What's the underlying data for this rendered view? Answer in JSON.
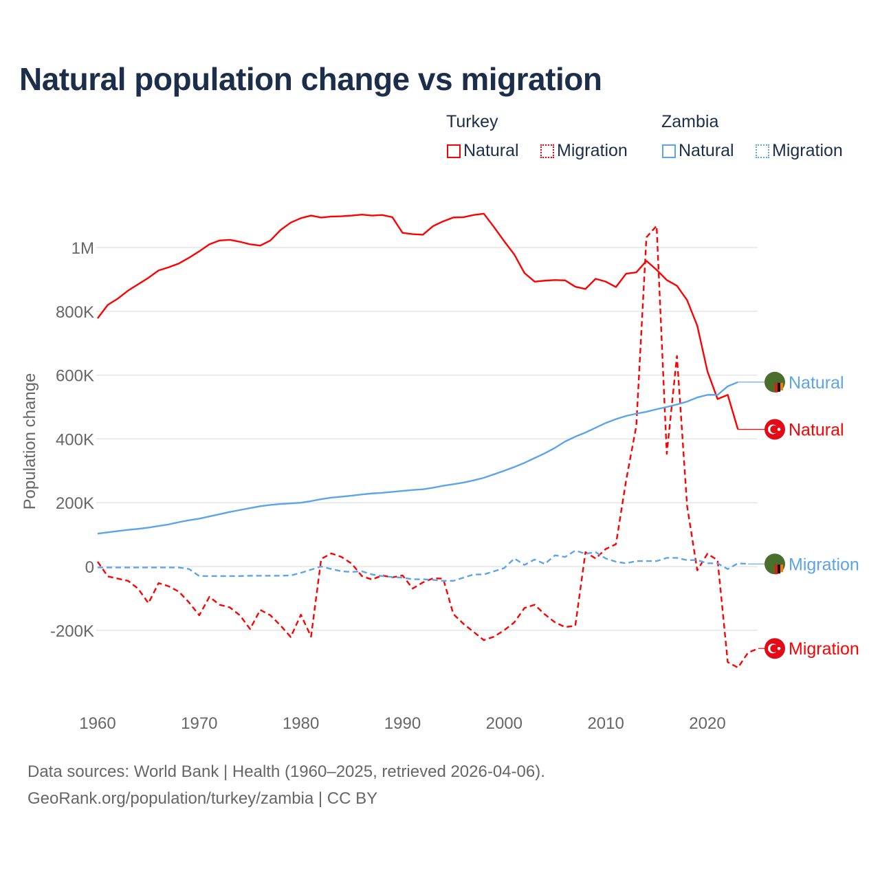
{
  "chart_data": {
    "type": "line",
    "title": "Natural population change vs migration",
    "ylabel": "Population change",
    "xlabel": "",
    "xlim": [
      1960,
      2025
    ],
    "ylim": [
      -400000,
      1150000
    ],
    "x_ticks": [
      "1960",
      "1970",
      "1980",
      "1990",
      "2000",
      "2010",
      "2020"
    ],
    "y_ticks": [
      {
        "v": -200000,
        "label": "-200K"
      },
      {
        "v": 0,
        "label": "0"
      },
      {
        "v": 200000,
        "label": "200K"
      },
      {
        "v": 400000,
        "label": "400K"
      },
      {
        "v": 600000,
        "label": "600K"
      },
      {
        "v": 800000,
        "label": "800K"
      },
      {
        "v": 1000000,
        "label": "1M"
      }
    ],
    "grid": true,
    "legend_placement": "top-right",
    "start_year": 1960,
    "series": [
      {
        "name": "Natural",
        "country": "Turkey",
        "color": "#ff0000",
        "dash": false,
        "flag": "turkey",
        "values": [
          778,
          820,
          840,
          865,
          885,
          905,
          928,
          938,
          950,
          968,
          988,
          1010,
          1022,
          1024,
          1018,
          1010,
          1006,
          1022,
          1055,
          1078,
          1092,
          1100,
          1094,
          1097,
          1098,
          1100,
          1103,
          1100,
          1102,
          1095,
          1046,
          1042,
          1040,
          1067,
          1082,
          1094,
          1095,
          1102,
          1106,
          1064,
          1020,
          978,
          920,
          893,
          896,
          898,
          897,
          877,
          870,
          902,
          893,
          876,
          918,
          922,
          958,
          930,
          898,
          880,
          835,
          755,
          612,
          525,
          538,
          430
        ]
      },
      {
        "name": "Migration",
        "country": "Turkey",
        "color": "#ff0000",
        "dash": true,
        "flag": "turkey",
        "values": [
          15,
          -31,
          -38,
          -45,
          -70,
          -115,
          -52,
          -62,
          -79,
          -113,
          -153,
          -95,
          -120,
          -128,
          -153,
          -196,
          -136,
          -153,
          -185,
          -221,
          -151,
          -220,
          24,
          41,
          30,
          9,
          -30,
          -41,
          -28,
          -34,
          -28,
          -69,
          -50,
          -37,
          -38,
          -149,
          -180,
          -205,
          -231,
          -220,
          -200,
          -175,
          -130,
          -120,
          -150,
          -175,
          -190,
          -186,
          45,
          25,
          55,
          70,
          270,
          440,
          1032,
          1068,
          353,
          660,
          190,
          -12,
          40,
          20,
          -300,
          -317,
          -270,
          -257
        ]
      },
      {
        "name": "Natural",
        "country": "Zambia",
        "color": "#5ba4ea",
        "dash": false,
        "flag": "zambia",
        "values": [
          103,
          107,
          111,
          115,
          118,
          122,
          127,
          132,
          139,
          145,
          150,
          157,
          164,
          171,
          177,
          183,
          189,
          193,
          196,
          198,
          200,
          205,
          211,
          216,
          219,
          222,
          226,
          229,
          231,
          234,
          237,
          240,
          242,
          247,
          253,
          258,
          263,
          270,
          278,
          289,
          300,
          312,
          325,
          340,
          355,
          372,
          392,
          407,
          420,
          435,
          450,
          462,
          472,
          479,
          485,
          493,
          500,
          508,
          517,
          530,
          538,
          538,
          565,
          578
        ]
      },
      {
        "name": "Migration",
        "country": "Zambia",
        "color": "#5ba4ea",
        "dash": true,
        "flag": "zambia",
        "values": [
          -3,
          -3,
          -3,
          -3,
          -3,
          -3,
          -3,
          -3,
          -3,
          -8,
          -30,
          -30,
          -30,
          -30,
          -30,
          -29,
          -29,
          -29,
          -29,
          -28,
          -20,
          -10,
          0,
          -8,
          -15,
          -17,
          -15,
          -25,
          -30,
          -33,
          -35,
          -40,
          -40,
          -42,
          -45,
          -45,
          -35,
          -25,
          -25,
          -15,
          -5,
          25,
          5,
          22,
          8,
          35,
          30,
          50,
          40,
          45,
          25,
          15,
          10,
          17,
          17,
          17,
          27,
          27,
          20,
          20,
          10,
          10,
          -8,
          10,
          8
        ]
      }
    ],
    "value_unit": "thousands"
  },
  "legend": {
    "groups": [
      {
        "label": "Turkey",
        "items": [
          {
            "label": "Natural"
          },
          {
            "label": "Migration"
          }
        ]
      },
      {
        "label": "Zambia",
        "items": [
          {
            "label": "Natural"
          },
          {
            "label": "Migration"
          }
        ]
      }
    ]
  },
  "footer": {
    "line1": "Data sources: World Bank | Health (1960–2025, retrieved 2026-04-06).",
    "line2": "GeoRank.org/population/turkey/zambia | CC BY"
  }
}
